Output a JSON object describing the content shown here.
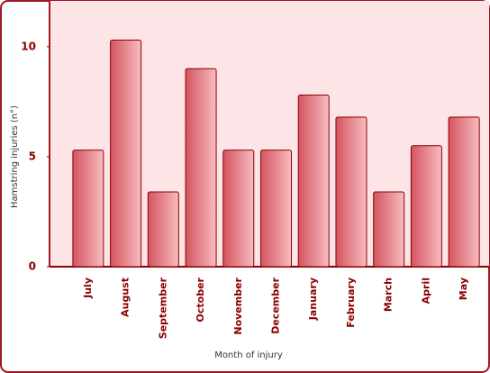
{
  "chart_data": {
    "type": "bar",
    "x_label": "Month of injury",
    "y_label": "Hamstring injuries (n°)",
    "categories": [
      "July",
      "August",
      "September",
      "October",
      "November",
      "December",
      "January",
      "February",
      "March",
      "April",
      "May"
    ],
    "values": [
      5.3,
      10.3,
      3.4,
      9.0,
      5.3,
      5.3,
      7.8,
      6.8,
      3.4,
      5.5,
      6.8
    ],
    "color": "#d4545f",
    "ylim": [
      0,
      12
    ],
    "yticks": [
      0,
      5,
      10
    ],
    "grid": false
  }
}
